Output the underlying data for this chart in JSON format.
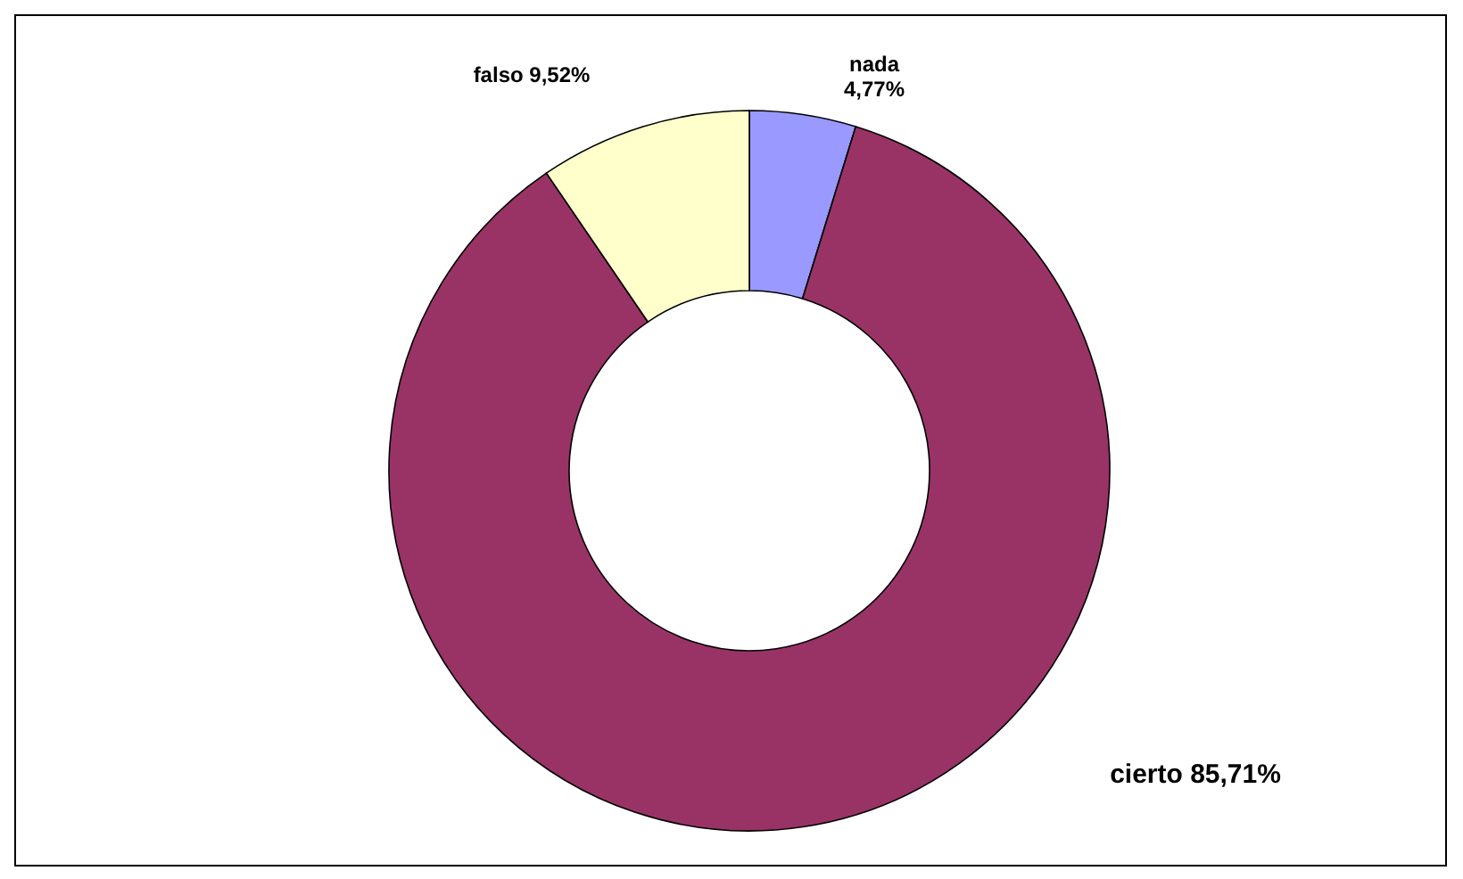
{
  "chart_data": {
    "type": "donut",
    "categories": [
      "nada",
      "cierto",
      "falso"
    ],
    "values": [
      4.77,
      85.71,
      9.52
    ],
    "colors": [
      "#9999ff",
      "#993366",
      "#ffffcc"
    ],
    "value_labels": [
      "4,77%",
      "85,71%",
      "9,52%"
    ]
  }
}
